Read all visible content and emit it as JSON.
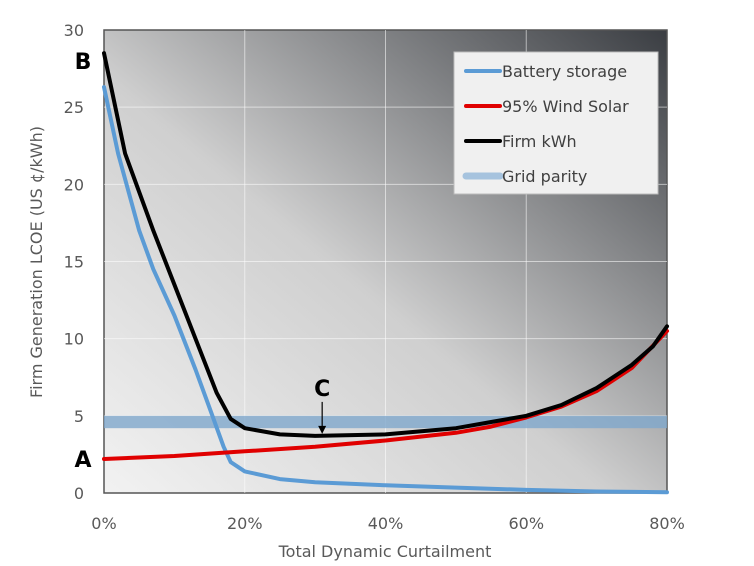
{
  "chart_data": {
    "type": "line",
    "xlabel": "Total Dynamic Curtailment",
    "ylabel": "Firm Generation LCOE (US ¢/kWh)",
    "xlim": [
      0,
      80
    ],
    "ylim": [
      0,
      30
    ],
    "x_ticks": [
      "0%",
      "20%",
      "40%",
      "60%",
      "80%"
    ],
    "x_tick_values": [
      0,
      20,
      40,
      60,
      80
    ],
    "y_ticks": [
      "0",
      "5",
      "10",
      "15",
      "20",
      "25",
      "30"
    ],
    "y_tick_values": [
      0,
      5,
      10,
      15,
      20,
      25,
      30
    ],
    "grid": true,
    "legend_placement": "top-right",
    "series": [
      {
        "name": "Battery storage",
        "color": "#5b9bd5",
        "x": [
          0,
          2,
          5,
          7,
          10,
          13,
          15,
          17,
          18,
          20,
          25,
          30,
          40,
          50,
          60,
          70,
          80
        ],
        "y": [
          26.3,
          22,
          17,
          14.5,
          11.5,
          8,
          5.5,
          3,
          2,
          1.4,
          0.9,
          0.7,
          0.5,
          0.35,
          0.2,
          0.1,
          0.05
        ]
      },
      {
        "name": "95% Wind Solar",
        "color": "#e00000",
        "x": [
          0,
          10,
          20,
          30,
          40,
          50,
          55,
          60,
          65,
          70,
          75,
          80
        ],
        "y": [
          2.2,
          2.4,
          2.7,
          3.0,
          3.4,
          3.9,
          4.3,
          4.9,
          5.6,
          6.6,
          8.1,
          10.5
        ]
      },
      {
        "name": "Firm kWh",
        "color": "#000000",
        "x": [
          0,
          3,
          7,
          10,
          13,
          16,
          18,
          20,
          25,
          30,
          40,
          50,
          55,
          60,
          65,
          70,
          75,
          78,
          80
        ],
        "y": [
          28.5,
          22,
          17,
          13.5,
          10,
          6.5,
          4.8,
          4.2,
          3.8,
          3.7,
          3.8,
          4.2,
          4.6,
          5.0,
          5.7,
          6.8,
          8.3,
          9.5,
          10.8
        ]
      }
    ],
    "bands": [
      {
        "name": "Grid parity",
        "color": "#7fa7cc",
        "y_range": [
          4.2,
          5.0
        ]
      }
    ],
    "annotations": [
      {
        "text": "A",
        "x": 0,
        "y": 2.2
      },
      {
        "text": "B",
        "x": 0,
        "y": 28
      },
      {
        "text": "C",
        "x": 31,
        "y": 3.7,
        "arrow": true
      }
    ]
  }
}
